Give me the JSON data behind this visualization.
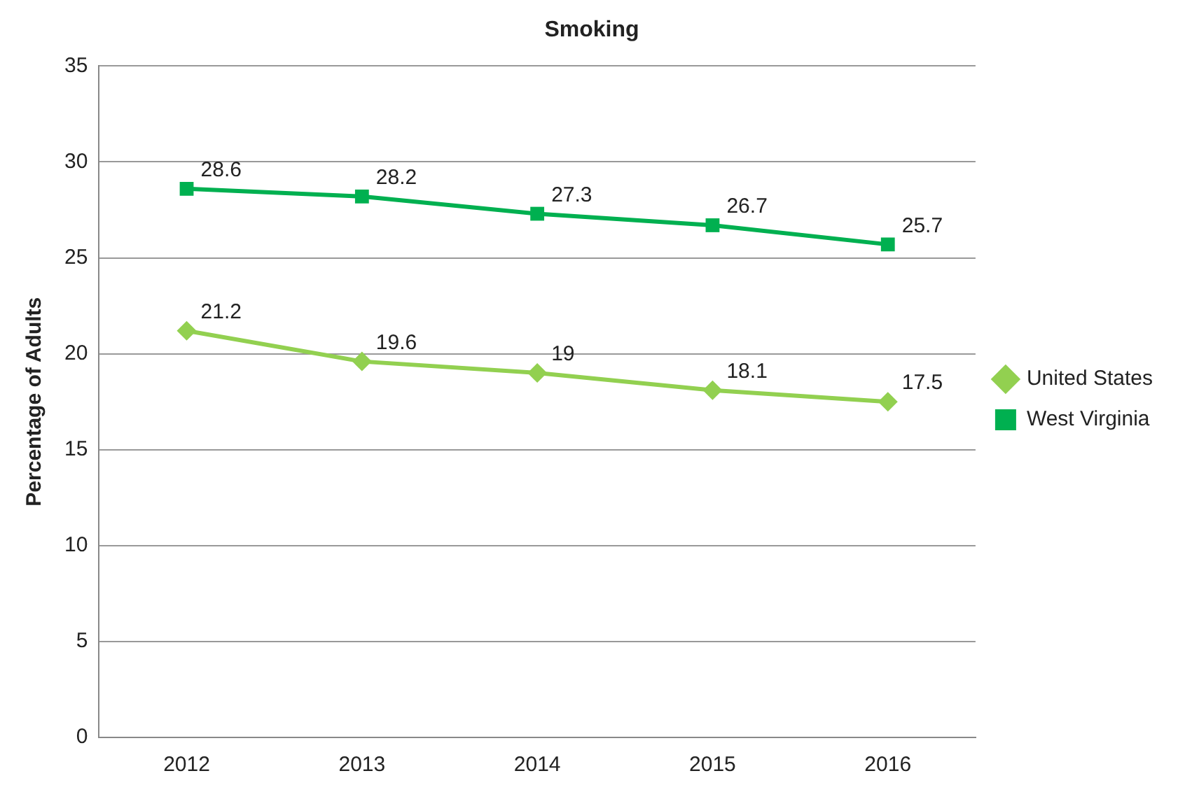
{
  "chart_data": {
    "type": "line",
    "title": "Smoking",
    "ylabel": "Percentage of Adults",
    "categories": [
      "2012",
      "2013",
      "2014",
      "2015",
      "2016"
    ],
    "series": [
      {
        "name": "United States",
        "color": "#92d050",
        "marker": "diamond",
        "values": [
          21.2,
          19.6,
          19,
          18.1,
          17.5
        ]
      },
      {
        "name": "West Virginia",
        "color": "#00b050",
        "marker": "square",
        "values": [
          28.6,
          28.2,
          27.3,
          26.7,
          25.7
        ]
      }
    ],
    "ylim": [
      0,
      35
    ],
    "yticks": [
      0,
      5,
      10,
      15,
      20,
      25,
      30,
      35
    ],
    "grid": "y",
    "legend": "right",
    "data_labels": true,
    "line_style": "solid"
  }
}
